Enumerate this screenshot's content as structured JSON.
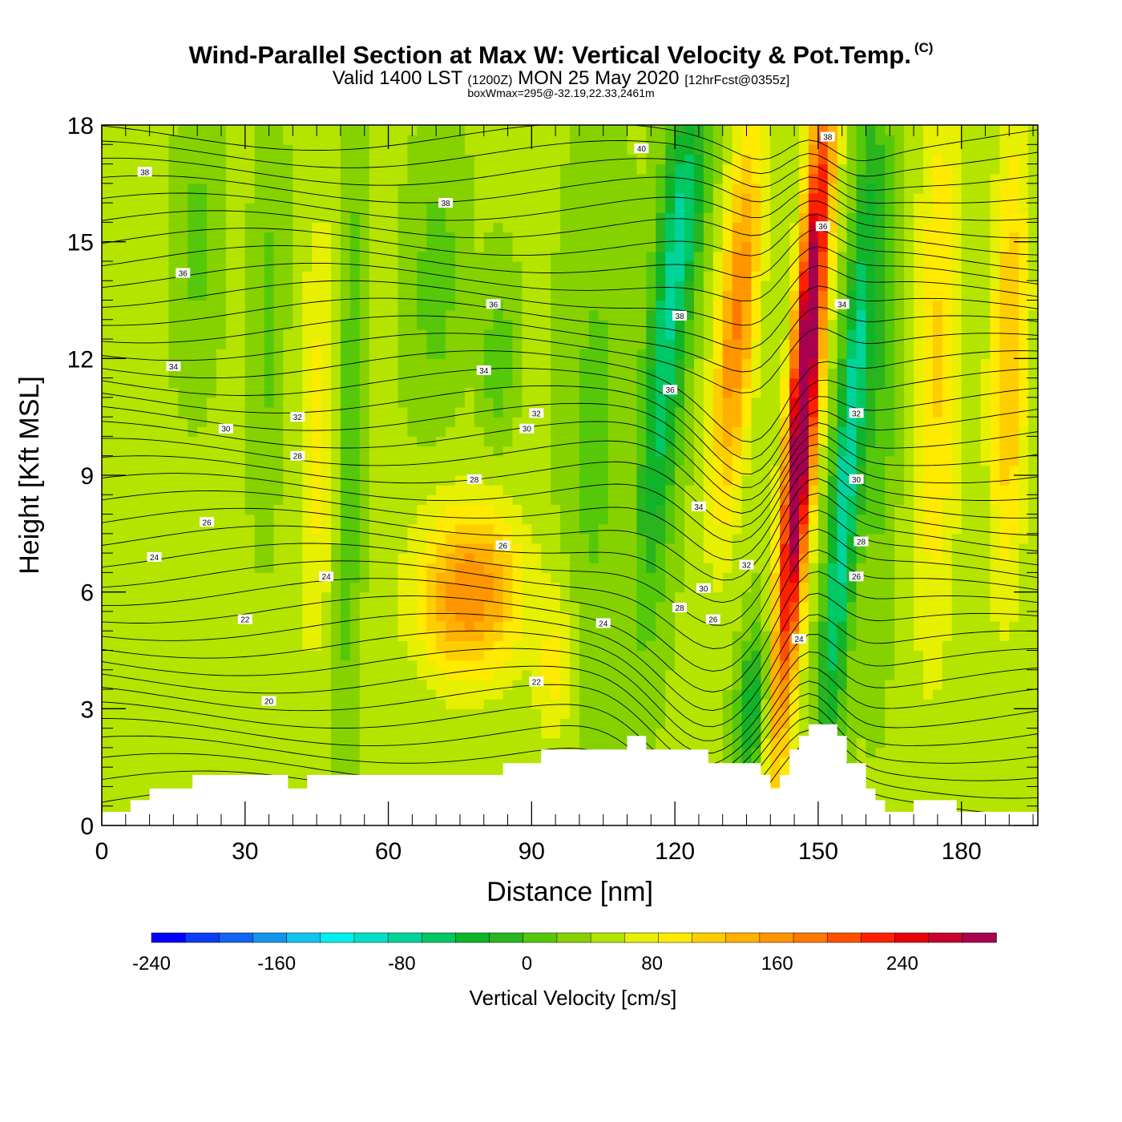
{
  "title": {
    "main": "Wind-Parallel Section at Max W: Vertical Velocity & Pot.Temp.",
    "copyright": "(C)",
    "valid_prefix": "Valid 1400 LST",
    "valid_zulu": "(1200Z)",
    "valid_date": "MON 25 May 2020",
    "forecast": "[12hrFcst@0355z]",
    "box_info": "boxWmax=295@-32.19,22.33,2461m"
  },
  "chart_data": {
    "type": "heatmap",
    "xlabel": "Distance [nm]",
    "ylabel": "Height [Kft MSL]",
    "xlim": [
      0,
      196
    ],
    "ylim": [
      0,
      18
    ],
    "x_ticks": [
      0,
      30,
      60,
      90,
      120,
      150,
      180
    ],
    "y_ticks": [
      0,
      3,
      6,
      9,
      12,
      15,
      18
    ],
    "colorbar": {
      "title": "Vertical Velocity [cm/s]",
      "min": -240,
      "max": 300,
      "step": 20,
      "tick_values": [
        -240,
        -160,
        -80,
        0,
        80,
        160,
        240
      ],
      "colors": [
        "#0000ff",
        "#0a3cf5",
        "#1064f0",
        "#1494eb",
        "#10c4f0",
        "#00f0f0",
        "#00e0c8",
        "#00d49a",
        "#00c864",
        "#10b428",
        "#2ab41e",
        "#56c80a",
        "#86d200",
        "#b4e400",
        "#e6f000",
        "#ffea00",
        "#ffce00",
        "#ffb000",
        "#ff9600",
        "#ff7800",
        "#ff5000",
        "#ff2000",
        "#e8000a",
        "#c8002c",
        "#a80050"
      ]
    },
    "terrain": [
      [
        0,
        0.35
      ],
      [
        6,
        0.35
      ],
      [
        6,
        0.65
      ],
      [
        10,
        0.65
      ],
      [
        10,
        0.95
      ],
      [
        19,
        0.95
      ],
      [
        19,
        1.3
      ],
      [
        39,
        1.3
      ],
      [
        39,
        0.95
      ],
      [
        43,
        0.95
      ],
      [
        43,
        1.3
      ],
      [
        84,
        1.3
      ],
      [
        84,
        1.6
      ],
      [
        92,
        1.6
      ],
      [
        92,
        1.95
      ],
      [
        110,
        1.95
      ],
      [
        110,
        2.3
      ],
      [
        114,
        2.3
      ],
      [
        114,
        1.95
      ],
      [
        127,
        1.95
      ],
      [
        127,
        1.6
      ],
      [
        138,
        1.6
      ],
      [
        138,
        1.3
      ],
      [
        140,
        1.3
      ],
      [
        140,
        0.95
      ],
      [
        142,
        0.95
      ],
      [
        142,
        1.3
      ],
      [
        144,
        1.3
      ],
      [
        144,
        1.95
      ],
      [
        146,
        1.95
      ],
      [
        146,
        2.3
      ],
      [
        148,
        2.3
      ],
      [
        148,
        2.6
      ],
      [
        154,
        2.6
      ],
      [
        154,
        2.3
      ],
      [
        156,
        2.3
      ],
      [
        156,
        1.6
      ],
      [
        160,
        1.6
      ],
      [
        160,
        0.95
      ],
      [
        162,
        0.95
      ],
      [
        162,
        0.65
      ],
      [
        164,
        0.65
      ],
      [
        164,
        0.35
      ],
      [
        170,
        0.35
      ],
      [
        170,
        0.65
      ],
      [
        179,
        0.65
      ],
      [
        179,
        0.35
      ],
      [
        196,
        0.35
      ],
      [
        196,
        0
      ],
      [
        0,
        0
      ]
    ],
    "w_features": [
      {
        "x": 20,
        "y": 15,
        "sx": 4,
        "sy": 3,
        "w": -30
      },
      {
        "x": 35,
        "y": 13,
        "sx": 3,
        "sy": 4,
        "w": -30
      },
      {
        "x": 45,
        "y": 10,
        "sx": 4,
        "sy": 6,
        "w": 45
      },
      {
        "x": 52,
        "y": 10,
        "sx": 2.5,
        "sy": 7,
        "w": -45
      },
      {
        "x": 70,
        "y": 14,
        "sx": 5,
        "sy": 3,
        "w": -35
      },
      {
        "x": 77,
        "y": 6,
        "sx": 11,
        "sy": 2.2,
        "w": 115
      },
      {
        "x": 83,
        "y": 12,
        "sx": 3,
        "sy": 2,
        "w": -40
      },
      {
        "x": 95,
        "y": 4,
        "sx": 4,
        "sy": 2,
        "w": 45
      },
      {
        "x": 103,
        "y": 10,
        "sx": 6,
        "sy": 6,
        "w": -30
      },
      {
        "x": 118,
        "y": 12,
        "sx": 4,
        "sy": 6,
        "w": -100
      },
      {
        "x": 123,
        "y": 16,
        "sx": 4,
        "sy": 2.5,
        "w": -60
      },
      {
        "x": 133,
        "y": 13,
        "sx": 4,
        "sy": 5,
        "w": 120
      },
      {
        "x": 136,
        "y": 3,
        "sx": 3,
        "sy": 2,
        "w": -80
      },
      {
        "x": 147,
        "y": 11,
        "sx": 3,
        "sy": 8,
        "w": 280
      },
      {
        "x": 156,
        "y": 9,
        "sx": 3,
        "sy": 8,
        "w": -120
      },
      {
        "x": 163,
        "y": 12,
        "sx": 4,
        "sy": 6,
        "w": -40
      },
      {
        "x": 175,
        "y": 12,
        "sx": 5,
        "sy": 8,
        "w": 60
      },
      {
        "x": 190,
        "y": 12,
        "sx": 4,
        "sy": 6,
        "w": 80
      }
    ],
    "theta_labels": [
      {
        "x": 9,
        "y": 16.8,
        "text": "38"
      },
      {
        "x": 17,
        "y": 14.2,
        "text": "36"
      },
      {
        "x": 15,
        "y": 11.8,
        "text": "34"
      },
      {
        "x": 26,
        "y": 10.2,
        "text": "30"
      },
      {
        "x": 41,
        "y": 10.5,
        "text": "32"
      },
      {
        "x": 41,
        "y": 9.5,
        "text": "28"
      },
      {
        "x": 22,
        "y": 7.8,
        "text": "26"
      },
      {
        "x": 11,
        "y": 6.9,
        "text": "24"
      },
      {
        "x": 47,
        "y": 6.4,
        "text": "24"
      },
      {
        "x": 30,
        "y": 5.3,
        "text": "22"
      },
      {
        "x": 35,
        "y": 3.2,
        "text": "20"
      },
      {
        "x": 72,
        "y": 16,
        "text": "38"
      },
      {
        "x": 82,
        "y": 13.4,
        "text": "36"
      },
      {
        "x": 80,
        "y": 11.7,
        "text": "34"
      },
      {
        "x": 91,
        "y": 10.6,
        "text": "32"
      },
      {
        "x": 89,
        "y": 10.2,
        "text": "30"
      },
      {
        "x": 78,
        "y": 8.9,
        "text": "28"
      },
      {
        "x": 84,
        "y": 7.2,
        "text": "26"
      },
      {
        "x": 105,
        "y": 5.2,
        "text": "24"
      },
      {
        "x": 91,
        "y": 3.7,
        "text": "22"
      },
      {
        "x": 113,
        "y": 17.4,
        "text": "40"
      },
      {
        "x": 121,
        "y": 13.1,
        "text": "38"
      },
      {
        "x": 119,
        "y": 11.2,
        "text": "36"
      },
      {
        "x": 125,
        "y": 8.2,
        "text": "34"
      },
      {
        "x": 135,
        "y": 6.7,
        "text": "32"
      },
      {
        "x": 126,
        "y": 6.1,
        "text": "30"
      },
      {
        "x": 121,
        "y": 5.6,
        "text": "28"
      },
      {
        "x": 128,
        "y": 5.3,
        "text": "26"
      },
      {
        "x": 146,
        "y": 4.8,
        "text": "24"
      },
      {
        "x": 152,
        "y": 17.7,
        "text": "38"
      },
      {
        "x": 151,
        "y": 15.4,
        "text": "36"
      },
      {
        "x": 155,
        "y": 13.4,
        "text": "34"
      },
      {
        "x": 158,
        "y": 10.6,
        "text": "32"
      },
      {
        "x": 158,
        "y": 8.9,
        "text": "30"
      },
      {
        "x": 159,
        "y": 7.3,
        "text": "28"
      },
      {
        "x": 158,
        "y": 6.4,
        "text": "26"
      }
    ]
  }
}
